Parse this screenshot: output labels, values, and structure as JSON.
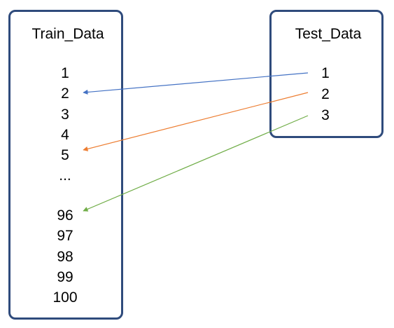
{
  "train": {
    "title": "Train_Data",
    "items": [
      "1",
      "2",
      "3",
      "4",
      "5",
      "...",
      "96",
      "97",
      "98",
      "99",
      "100"
    ]
  },
  "test": {
    "title": "Test_Data",
    "items": [
      "1",
      "2",
      "3"
    ]
  },
  "links": [
    {
      "from_test": "1",
      "to_train": "2",
      "color": "#4472C4"
    },
    {
      "from_test": "2",
      "to_train": "5",
      "color": "#ED7D31"
    },
    {
      "from_test": "3",
      "to_train": "96",
      "color": "#70AD47"
    }
  ]
}
